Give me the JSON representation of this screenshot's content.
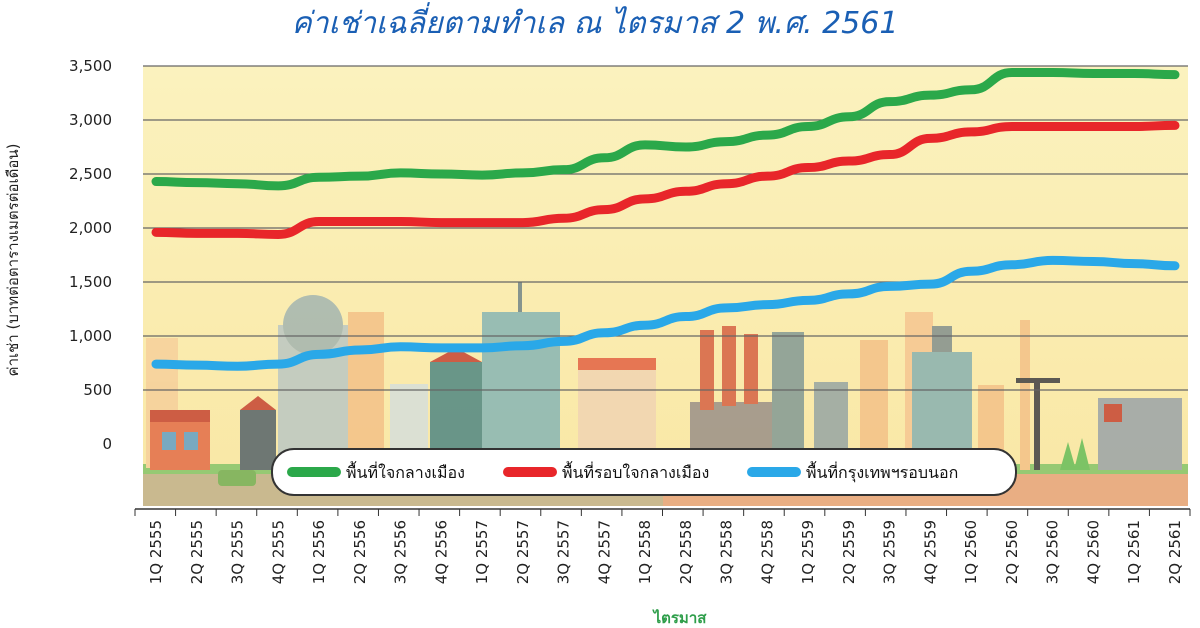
{
  "colors": {
    "title": "#1a5fb4",
    "background_panel": "#fbf0b8",
    "grid": "#666666",
    "xlabel": "#2e9e4a"
  },
  "chart_data": {
    "type": "line",
    "title": "ค่าเช่าเฉลี่ยตามทำเล ณ ไตรมาส 2 พ.ศ. 2561",
    "xlabel": "ไตรมาส",
    "ylabel": "ค่าเช่า (บาทต่อตารางเมตรต่อเดือน)",
    "ylim": [
      0,
      3500
    ],
    "yticks": [
      "3,500",
      "3,000",
      "2,500",
      "2,000",
      "1,500",
      "1,000",
      "500",
      "0"
    ],
    "ytick_values": [
      3500,
      3000,
      2500,
      2000,
      1500,
      1000,
      500,
      0
    ],
    "grid": true,
    "legend_position": "bottom",
    "categories": [
      "1Q 2555",
      "2Q 2555",
      "3Q 2555",
      "4Q 2555",
      "1Q 2556",
      "2Q 2556",
      "3Q 2556",
      "4Q 2556",
      "1Q 2557",
      "2Q 2557",
      "3Q 2557",
      "4Q 2557",
      "1Q 2558",
      "2Q 2558",
      "3Q 2558",
      "4Q 2558",
      "1Q 2559",
      "2Q 2559",
      "3Q 2559",
      "4Q 2559",
      "1Q 2560",
      "2Q 2560",
      "3Q 2560",
      "4Q 2560",
      "1Q 2561",
      "2Q 2561"
    ],
    "series": [
      {
        "name": "พื้นที่ใจกลางเมือง",
        "color": "#2ba84a",
        "values": [
          2430,
          2420,
          2410,
          2390,
          2470,
          2480,
          2510,
          2500,
          2490,
          2510,
          2540,
          2650,
          2770,
          2750,
          2800,
          2860,
          2940,
          3030,
          3170,
          3230,
          3280,
          3440,
          3440,
          3430,
          3430,
          3420
        ]
      },
      {
        "name": "พื้นที่รอบใจกลางเมือง",
        "color": "#e8262a",
        "values": [
          1960,
          1950,
          1950,
          1940,
          2060,
          2060,
          2060,
          2050,
          2050,
          2050,
          2090,
          2170,
          2270,
          2340,
          2410,
          2480,
          2560,
          2620,
          2680,
          2830,
          2890,
          2940,
          2940,
          2940,
          2940,
          2950
        ]
      },
      {
        "name": "พื้นที่กรุงเทพฯรอบนอก",
        "color": "#2aa8e8",
        "values": [
          740,
          730,
          720,
          740,
          830,
          870,
          900,
          890,
          890,
          910,
          950,
          1030,
          1100,
          1180,
          1260,
          1290,
          1330,
          1390,
          1460,
          1480,
          1600,
          1660,
          1700,
          1690,
          1670,
          1650
        ]
      }
    ]
  }
}
